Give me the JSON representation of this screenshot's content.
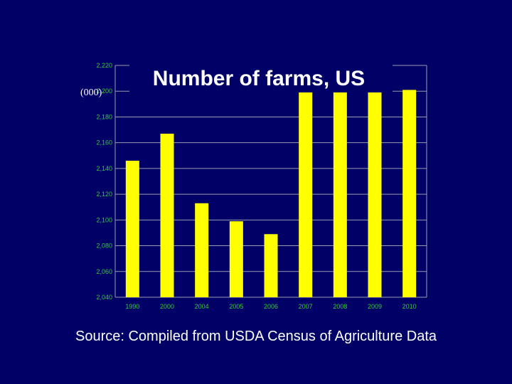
{
  "colors": {
    "background": "#000066",
    "bar": "#ffff00",
    "grid": "#9a9ab0",
    "tick_text": "#33cc33",
    "title": "#ffffff"
  },
  "source_text": "Source: Compiled from USDA Census of Agriculture Data",
  "chart_data": {
    "type": "bar",
    "title": "Number of farms, US",
    "ylabel": "(000)",
    "xlabel": "",
    "categories": [
      "1990",
      "2000",
      "2004",
      "2005",
      "2006",
      "2007",
      "2008",
      "2009",
      "2010"
    ],
    "values": [
      2146,
      2167,
      2113,
      2099,
      2089,
      2205,
      2200,
      2200,
      2201
    ],
    "ylim": [
      2040,
      2220
    ],
    "yticks": [
      "2,040",
      "2,060",
      "2,080",
      "2,100",
      "2,120",
      "2,140",
      "2,160",
      "2,180",
      "2,200",
      "2,220"
    ],
    "grid": true,
    "legend": "none"
  }
}
